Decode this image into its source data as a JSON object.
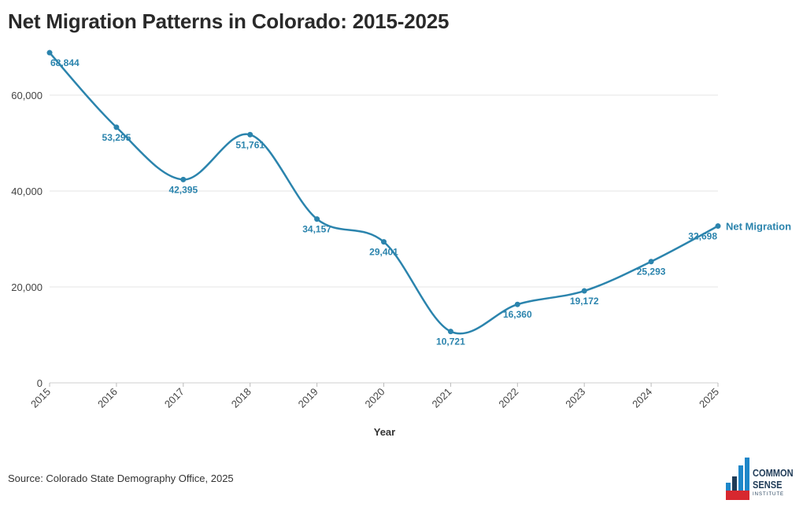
{
  "title": "Net Migration Patterns in Colorado: 2015-2025",
  "source": "Source: Colorado State Demography Office, 2025",
  "logo": {
    "line1": "COMMON",
    "line2": "SENSE",
    "line3": "INSTITUTE"
  },
  "colors": {
    "line": "#2b84ad",
    "grid": "#e6e6e6",
    "logo_red": "#d7282f",
    "logo_blue": "#1e87c9",
    "logo_navy": "#1f3b57"
  },
  "chart_data": {
    "type": "line",
    "title": "Net Migration Patterns in Colorado: 2015-2025",
    "xlabel": "Year",
    "ylabel": "",
    "ylim": [
      0,
      70000
    ],
    "yticks": [
      0,
      20000,
      40000,
      60000
    ],
    "ytick_labels": [
      "0",
      "20,000",
      "40,000",
      "60,000"
    ],
    "categories": [
      "2015",
      "2016",
      "2017",
      "2018",
      "2019",
      "2020",
      "2021",
      "2022",
      "2023",
      "2024",
      "2025"
    ],
    "grid": true,
    "smooth": true,
    "series": [
      {
        "name": "Net Migration",
        "values": [
          68844,
          53295,
          42395,
          51761,
          34157,
          29401,
          10721,
          16360,
          19172,
          25293,
          32698
        ],
        "labels": [
          "68,844",
          "53,295",
          "42,395",
          "51,761",
          "34,157",
          "29,401",
          "10,721",
          "16,360",
          "19,172",
          "25,293",
          "32,698"
        ]
      }
    ]
  }
}
